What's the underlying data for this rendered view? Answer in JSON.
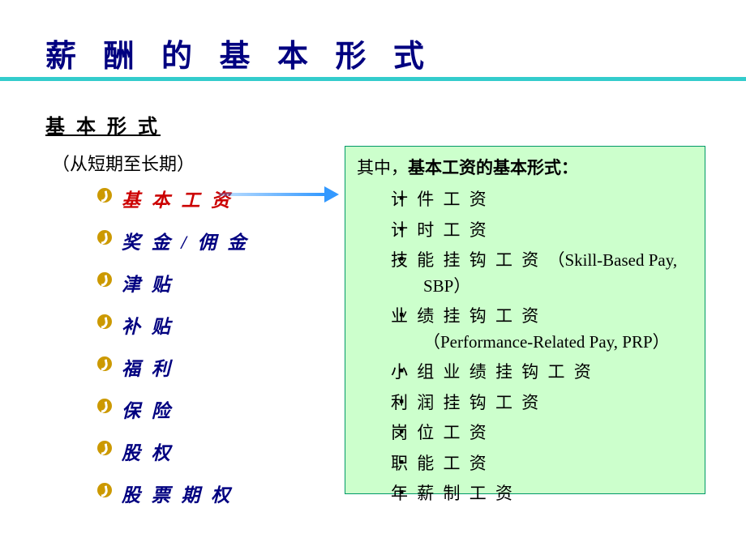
{
  "title": "薪 酬 的 基 本 形 式",
  "subtitle": "基 本 形 式",
  "note": "（从短期至长期）",
  "colors": {
    "title_color": "#000080",
    "underline_color": "#33cccc",
    "list_bullet_color": "#cc9900",
    "list_text_color": "#000080",
    "highlight_color": "#cc0000",
    "arrow_color": "#3399ff",
    "box_bg": "#ccffcc",
    "box_border": "#009966"
  },
  "main_list": [
    {
      "label": "基 本 工 资",
      "highlight": true
    },
    {
      "label": "奖 金 / 佣 金",
      "highlight": false
    },
    {
      "label": "津 贴",
      "highlight": false
    },
    {
      "label": "补 贴",
      "highlight": false
    },
    {
      "label": "福 利",
      "highlight": false
    },
    {
      "label": "保 险",
      "highlight": false
    },
    {
      "label": "股 权",
      "highlight": false
    },
    {
      "label": "股 票 期 权",
      "highlight": false
    }
  ],
  "detail": {
    "header_prefix": "其中，",
    "header_bold": "基本工资的基本形式：",
    "items": [
      "计 件 工 资",
      "计 时 工 资",
      "技 能 挂 钩 工 资 <span class=\"en\">（Skill-Based Pay, SBP）</span>",
      "业 绩 挂 钩 工 资<br><span class=\"en\">（Performance-Related Pay, PRP）</span>",
      "小 组 业 绩 挂 钩 工 资",
      "利 润 挂 钩 工 资",
      "岗 位 工 资",
      "职 能 工 资",
      "年 薪 制 工 资"
    ]
  }
}
